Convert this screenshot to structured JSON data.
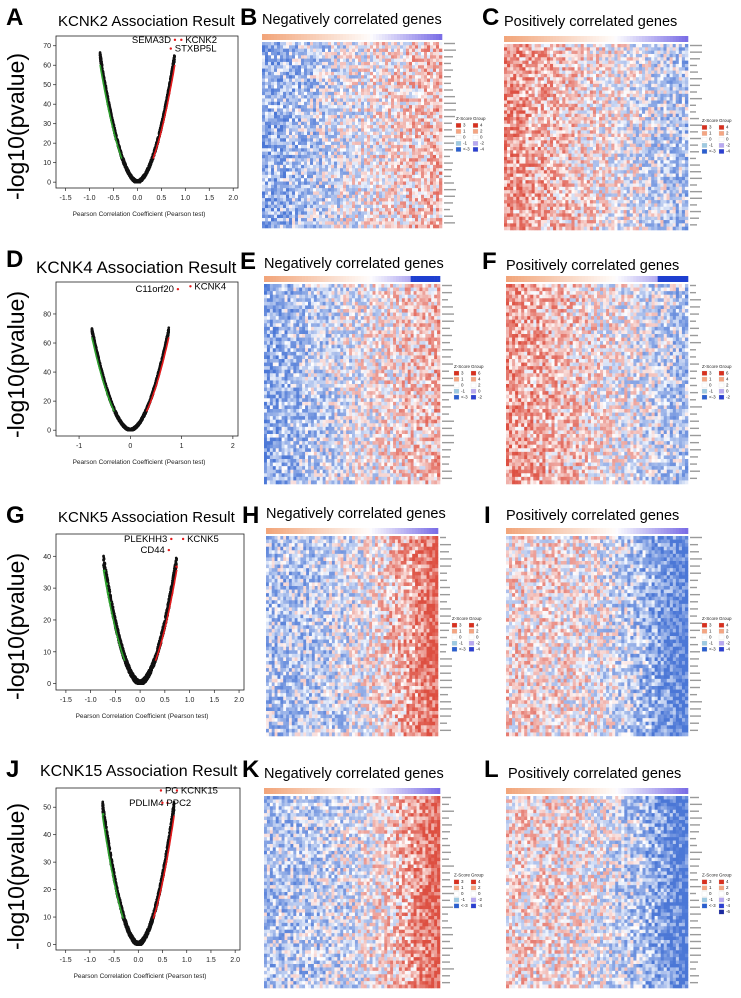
{
  "figure": {
    "ylabel_text": "-log10(pvalue)",
    "xlabel_text": "Pearson Correlation Coefficient (Pearson test)",
    "neg_title": "Negatively correlated genes",
    "pos_title": "Positively correlated genes",
    "legend": {
      "zscore": "Z-Score",
      "group": "Group"
    }
  },
  "colors": {
    "sig_pos": "#e41a1c",
    "sig_neg": "#2ca02c",
    "nonsig": "#111111",
    "heat_high": "#d7301f",
    "heat_mid": "#ffffff",
    "heat_low": "#2b5fcf"
  },
  "chart_data": [
    {
      "type": "scatter",
      "panel": "A",
      "title": "KCNK2 Association Result",
      "xlabel": "Pearson Correlation Coefficient (Pearson test)",
      "ylabel": "-log10(pvalue)",
      "xlim": [
        -1.7,
        2.1
      ],
      "ylim": [
        -3,
        75
      ],
      "xticks": [
        "-1.5",
        "-1.0",
        "-0.5",
        "0.0",
        "0.5",
        "1.0",
        "1.5",
        "2.0"
      ],
      "xtick_values": [
        -1.5,
        -1.0,
        -0.5,
        0.0,
        0.5,
        1.0,
        1.5,
        2.0
      ],
      "yticks": [
        0,
        10,
        20,
        30,
        40,
        50,
        60,
        70
      ],
      "ymax_curve": 64,
      "edge": 0.78,
      "annotations": [
        {
          "label": "SEMA3D",
          "x": 0.7,
          "y": 71.5,
          "anchor": "end"
        },
        {
          "label": "KCNK2",
          "x": 1.0,
          "y": 71.5,
          "anchor": "start"
        },
        {
          "label": "STXBP5L",
          "x": 0.78,
          "y": 67,
          "anchor": "start"
        }
      ]
    },
    {
      "type": "scatter",
      "panel": "D",
      "title": "KCNK4 Association Result",
      "xlabel": "Pearson Correlation Coefficient (Pearson test)",
      "ylabel": "-log10(pvalue)",
      "xlim": [
        -1.45,
        2.1
      ],
      "ylim": [
        -4,
        102
      ],
      "xticks": [
        "-1",
        "0",
        "1",
        "2"
      ],
      "xtick_values": [
        -1,
        0,
        1,
        2
      ],
      "yticks": [
        0,
        20,
        40,
        60,
        80
      ],
      "ymax_curve": 68,
      "edge": 0.75,
      "annotations": [
        {
          "label": "C11orf20",
          "x": 0.85,
          "y": 95,
          "anchor": "end"
        },
        {
          "label": "KCNK4",
          "x": 1.25,
          "y": 97,
          "anchor": "start"
        }
      ]
    },
    {
      "type": "scatter",
      "panel": "G",
      "title": "KCNK5 Association Result",
      "xlabel": "Pearson Correlation Coefficient (Pearson test)",
      "ylabel": "-log10(pvalue)",
      "xlim": [
        -1.7,
        2.1
      ],
      "ylim": [
        -2,
        47
      ],
      "xticks": [
        "-1.5",
        "-1.0",
        "-0.5",
        "0.0",
        "0.5",
        "1.0",
        "1.5",
        "2.0"
      ],
      "xtick_values": [
        -1.5,
        -1.0,
        -0.5,
        0.0,
        0.5,
        1.0,
        1.5,
        2.0
      ],
      "yticks": [
        0,
        10,
        20,
        30,
        40
      ],
      "ymax_curve": 38,
      "edge": 0.74,
      "annotations": [
        {
          "label": "PLEKHH3",
          "x": 0.55,
          "y": 44.5,
          "anchor": "end"
        },
        {
          "label": "KCNK5",
          "x": 0.95,
          "y": 44.5,
          "anchor": "start"
        },
        {
          "label": "CD44",
          "x": 0.5,
          "y": 41,
          "anchor": "end"
        }
      ]
    },
    {
      "type": "scatter",
      "panel": "J",
      "title": "KCNK15 Association Result",
      "xlabel": "Pearson Correlation Coefficient (Pearson test)",
      "ylabel": "-log10(pvalue)",
      "xlim": [
        -1.7,
        2.1
      ],
      "ylim": [
        -2,
        57
      ],
      "xticks": [
        "-1.5",
        "-1.0",
        "-0.5",
        "0.0",
        "0.5",
        "1.0",
        "1.5",
        "2.0"
      ],
      "xtick_values": [
        -1.5,
        -1.0,
        -0.5,
        0.0,
        0.5,
        1.0,
        1.5,
        2.0
      ],
      "yticks": [
        0,
        10,
        20,
        30,
        40,
        50
      ],
      "ymax_curve": 50,
      "edge": 0.74,
      "annotations": [
        {
          "label": "PC",
          "x": 0.55,
          "y": 55,
          "anchor": "start"
        },
        {
          "label": "KCNK15",
          "x": 0.88,
          "y": 55,
          "anchor": "start"
        },
        {
          "label": "PDLIM4",
          "x": 0.52,
          "y": 50.5,
          "anchor": "end"
        },
        {
          "label": "PPC2",
          "x": 0.58,
          "y": 50.5,
          "anchor": "start"
        }
      ]
    },
    {
      "type": "heatmap",
      "panel": "B",
      "title": "Negatively correlated genes",
      "direction": "neg",
      "legend_z": [
        "3",
        "1",
        "0",
        "-1",
        "<-3"
      ],
      "legend_g": [
        "4",
        "2",
        "0",
        "-2",
        "-4"
      ]
    },
    {
      "type": "heatmap",
      "panel": "C",
      "title": "Positively correlated genes",
      "direction": "pos",
      "legend_z": [
        "3",
        "1",
        "0",
        "-1",
        "<-3"
      ],
      "legend_g": [
        "4",
        "2",
        "0",
        "-2",
        "-4"
      ]
    },
    {
      "type": "heatmap",
      "panel": "E",
      "title": "Negatively correlated genes",
      "direction": "neg",
      "legend_z": [
        "3",
        "1",
        "0",
        "-1",
        "<-3"
      ],
      "legend_g": [
        "6",
        "4",
        "2",
        "0",
        "-2"
      ]
    },
    {
      "type": "heatmap",
      "panel": "F",
      "title": "Positively correlated genes",
      "direction": "pos",
      "legend_z": [
        "3",
        "1",
        "0",
        "-1",
        "<-3"
      ],
      "legend_g": [
        "6",
        "4",
        "2",
        "0",
        "-2"
      ]
    },
    {
      "type": "heatmap",
      "panel": "H",
      "title": "Negatively correlated genes",
      "direction": "neg2",
      "legend_z": [
        "3",
        "1",
        "0",
        "-1",
        "<-3"
      ],
      "legend_g": [
        "4",
        "2",
        "0",
        "-2",
        "-4"
      ]
    },
    {
      "type": "heatmap",
      "panel": "I",
      "title": "Positively correlated genes",
      "direction": "pos2",
      "legend_z": [
        "3",
        "1",
        "0",
        "-1",
        "<-3"
      ],
      "legend_g": [
        "4",
        "2",
        "0",
        "-2",
        "-4"
      ]
    },
    {
      "type": "heatmap",
      "panel": "K",
      "title": "Negatively correlated genes",
      "direction": "neg2",
      "legend_z": [
        "3",
        "1",
        "0",
        "-1",
        "<-3"
      ],
      "legend_g": [
        "4",
        "2",
        "0",
        "-2",
        "-4"
      ]
    },
    {
      "type": "heatmap",
      "panel": "L",
      "title": "Positively correlated genes",
      "direction": "pos2",
      "legend_z": [
        "3",
        "1",
        "0",
        "-1",
        "<-3"
      ],
      "legend_g": [
        "4",
        "2",
        "0",
        "-2",
        "-4",
        "-6"
      ]
    }
  ]
}
